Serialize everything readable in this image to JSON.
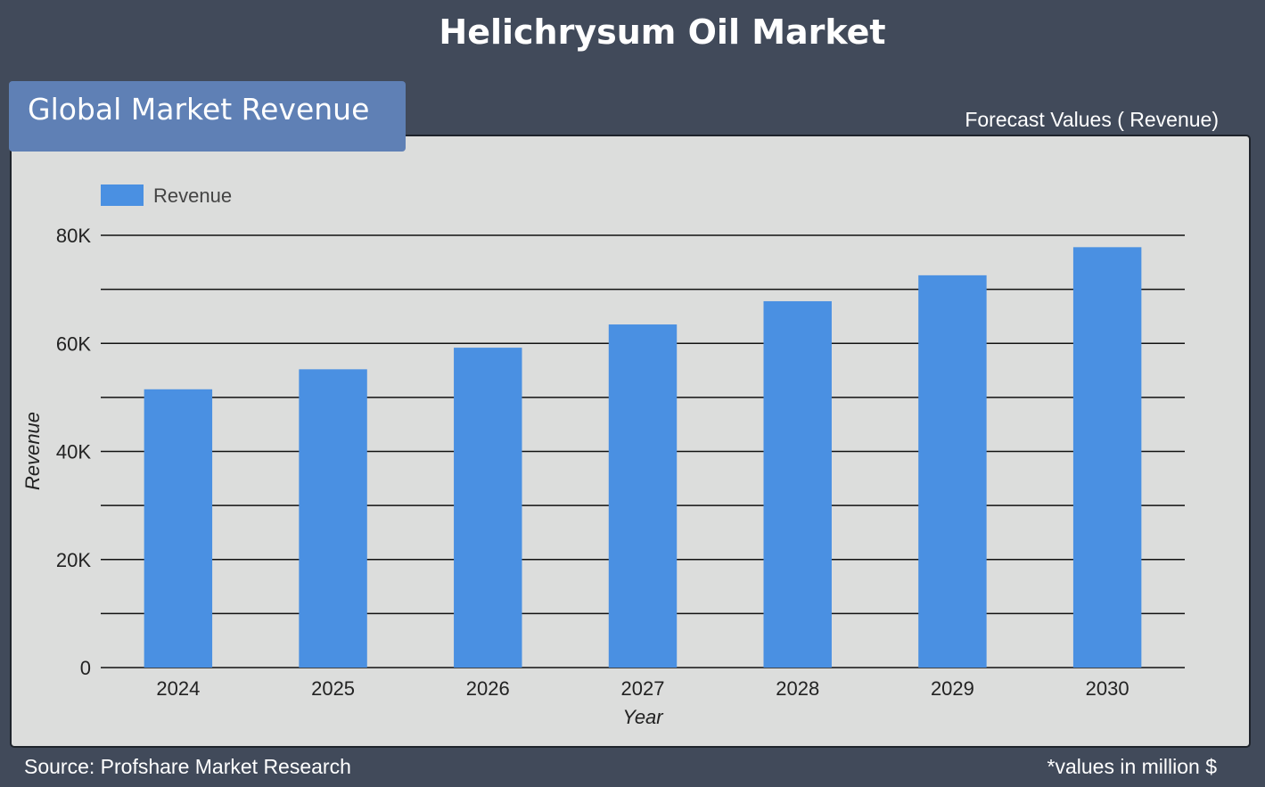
{
  "header": {
    "title": "Helichrysum Oil Market",
    "section_label": "Global Market Revenue",
    "forecast_label": "Forecast Values ( Revenue)"
  },
  "footer": {
    "source": "Source: Profshare Market Research",
    "units_note": "*values in million $"
  },
  "colors": {
    "background": "#414a5a",
    "panel": "#dcdddc",
    "badge": "#5f80b5",
    "bar": "#4a90e2"
  },
  "chart_data": {
    "type": "bar",
    "categories": [
      "2024",
      "2025",
      "2026",
      "2027",
      "2028",
      "2029",
      "2030"
    ],
    "series": [
      {
        "name": "Revenue",
        "values": [
          51500,
          55200,
          59200,
          63500,
          67800,
          72600,
          77800
        ]
      }
    ],
    "xlabel": "Year",
    "ylabel": "Revenue",
    "ylim": [
      0,
      80000
    ],
    "yticks": [
      0,
      20000,
      40000,
      60000,
      80000
    ],
    "ytick_labels": [
      "0",
      "20K",
      "40K",
      "60K",
      "80K"
    ],
    "grid": true,
    "legend": "top-left"
  }
}
